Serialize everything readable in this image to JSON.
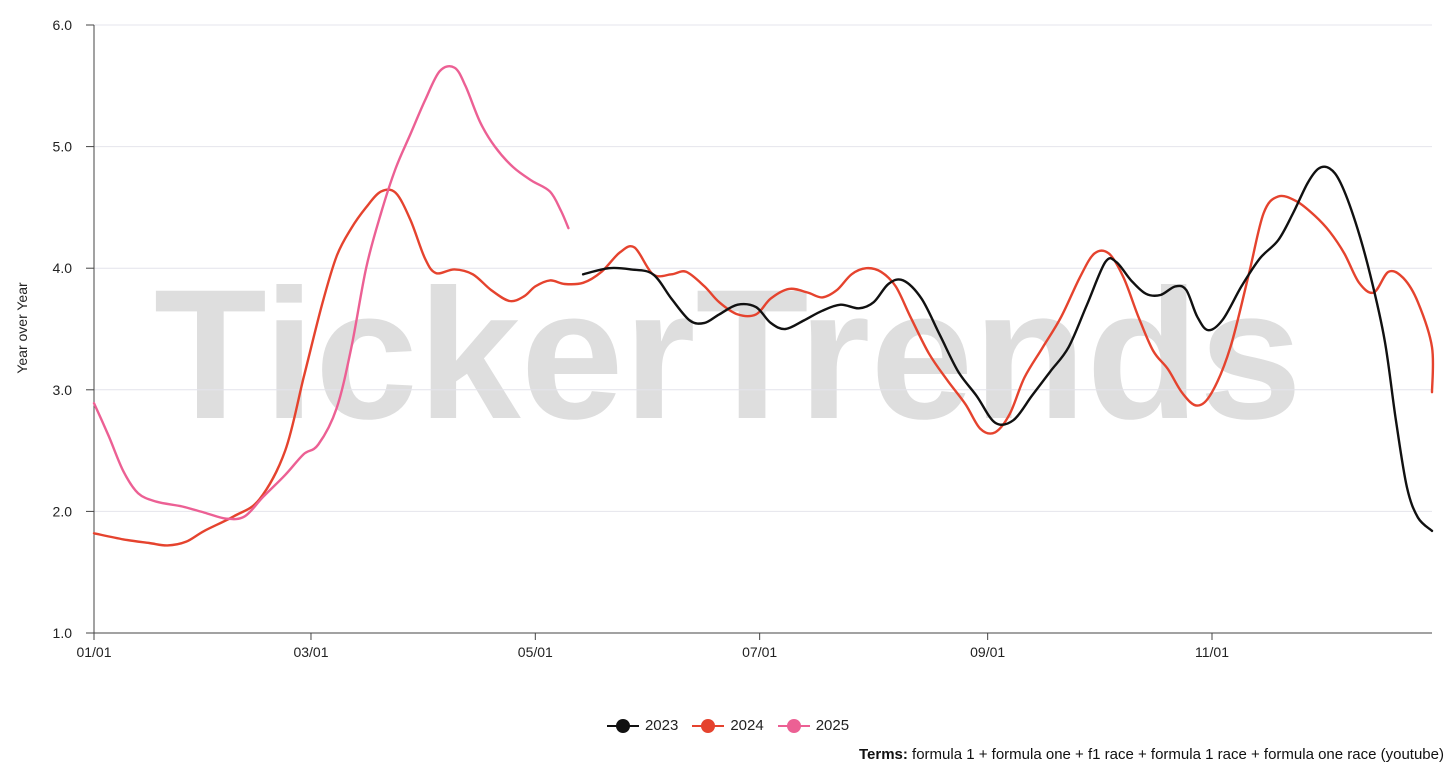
{
  "watermark": "TickerTrends",
  "chart_data": {
    "type": "line",
    "title": "",
    "ylabel": "Year over Year",
    "xlabel": "",
    "ylim": [
      1.0,
      6.0
    ],
    "yticks": [
      "1.0",
      "2.0",
      "3.0",
      "4.0",
      "5.0",
      "6.0"
    ],
    "xticks": [
      {
        "label": "01/01",
        "day": 0
      },
      {
        "label": "03/01",
        "day": 59
      },
      {
        "label": "05/01",
        "day": 120
      },
      {
        "label": "07/01",
        "day": 181
      },
      {
        "label": "09/01",
        "day": 243
      },
      {
        "label": "11/01",
        "day": 304
      }
    ],
    "xlim": [
      0,
      359
    ],
    "grid": true,
    "legend_position": "bottom-center",
    "series": [
      {
        "name": "2023",
        "color": "#111111",
        "points": [
          [
            133,
            3.95
          ],
          [
            140,
            4.0
          ],
          [
            146,
            3.99
          ],
          [
            152,
            3.95
          ],
          [
            157,
            3.75
          ],
          [
            162,
            3.57
          ],
          [
            166,
            3.55
          ],
          [
            170,
            3.62
          ],
          [
            175,
            3.7
          ],
          [
            180,
            3.68
          ],
          [
            184,
            3.55
          ],
          [
            188,
            3.5
          ],
          [
            193,
            3.57
          ],
          [
            198,
            3.65
          ],
          [
            203,
            3.7
          ],
          [
            208,
            3.67
          ],
          [
            212,
            3.72
          ],
          [
            216,
            3.87
          ],
          [
            220,
            3.9
          ],
          [
            225,
            3.75
          ],
          [
            230,
            3.45
          ],
          [
            235,
            3.15
          ],
          [
            240,
            2.95
          ],
          [
            245,
            2.73
          ],
          [
            250,
            2.75
          ],
          [
            255,
            2.95
          ],
          [
            260,
            3.15
          ],
          [
            265,
            3.35
          ],
          [
            270,
            3.7
          ],
          [
            275,
            4.05
          ],
          [
            278,
            4.05
          ],
          [
            282,
            3.9
          ],
          [
            286,
            3.79
          ],
          [
            290,
            3.78
          ],
          [
            294,
            3.85
          ],
          [
            297,
            3.82
          ],
          [
            300,
            3.6
          ],
          [
            303,
            3.49
          ],
          [
            307,
            3.58
          ],
          [
            312,
            3.85
          ],
          [
            317,
            4.08
          ],
          [
            322,
            4.23
          ],
          [
            326,
            4.45
          ],
          [
            330,
            4.7
          ],
          [
            333,
            4.82
          ],
          [
            336,
            4.82
          ],
          [
            339,
            4.7
          ],
          [
            343,
            4.38
          ],
          [
            347,
            3.95
          ],
          [
            351,
            3.4
          ],
          [
            354,
            2.75
          ],
          [
            357,
            2.2
          ],
          [
            360,
            1.95
          ],
          [
            364,
            1.84
          ]
        ]
      },
      {
        "name": "2024",
        "color": "#e5432e",
        "points": [
          [
            0,
            1.82
          ],
          [
            8,
            1.77
          ],
          [
            15,
            1.74
          ],
          [
            20,
            1.72
          ],
          [
            25,
            1.75
          ],
          [
            30,
            1.84
          ],
          [
            38,
            1.96
          ],
          [
            45,
            2.1
          ],
          [
            52,
            2.5
          ],
          [
            57,
            3.1
          ],
          [
            62,
            3.7
          ],
          [
            66,
            4.1
          ],
          [
            70,
            4.33
          ],
          [
            74,
            4.5
          ],
          [
            78,
            4.63
          ],
          [
            82,
            4.62
          ],
          [
            86,
            4.4
          ],
          [
            90,
            4.08
          ],
          [
            93,
            3.96
          ],
          [
            98,
            3.99
          ],
          [
            103,
            3.95
          ],
          [
            108,
            3.82
          ],
          [
            113,
            3.73
          ],
          [
            117,
            3.77
          ],
          [
            120,
            3.85
          ],
          [
            124,
            3.9
          ],
          [
            128,
            3.87
          ],
          [
            133,
            3.88
          ],
          [
            138,
            3.97
          ],
          [
            143,
            4.13
          ],
          [
            147,
            4.17
          ],
          [
            152,
            3.95
          ],
          [
            157,
            3.95
          ],
          [
            161,
            3.97
          ],
          [
            166,
            3.85
          ],
          [
            170,
            3.72
          ],
          [
            175,
            3.62
          ],
          [
            180,
            3.62
          ],
          [
            184,
            3.75
          ],
          [
            189,
            3.83
          ],
          [
            194,
            3.8
          ],
          [
            198,
            3.76
          ],
          [
            202,
            3.82
          ],
          [
            206,
            3.95
          ],
          [
            210,
            4.0
          ],
          [
            214,
            3.97
          ],
          [
            218,
            3.85
          ],
          [
            222,
            3.6
          ],
          [
            227,
            3.3
          ],
          [
            232,
            3.08
          ],
          [
            237,
            2.88
          ],
          [
            241,
            2.68
          ],
          [
            245,
            2.65
          ],
          [
            249,
            2.8
          ],
          [
            253,
            3.1
          ],
          [
            258,
            3.35
          ],
          [
            263,
            3.6
          ],
          [
            268,
            3.92
          ],
          [
            272,
            4.12
          ],
          [
            276,
            4.12
          ],
          [
            280,
            3.92
          ],
          [
            284,
            3.6
          ],
          [
            288,
            3.32
          ],
          [
            292,
            3.17
          ],
          [
            296,
            2.97
          ],
          [
            300,
            2.87
          ],
          [
            304,
            2.98
          ],
          [
            309,
            3.35
          ],
          [
            314,
            3.95
          ],
          [
            318,
            4.45
          ],
          [
            322,
            4.59
          ],
          [
            327,
            4.55
          ],
          [
            332,
            4.43
          ],
          [
            336,
            4.3
          ],
          [
            340,
            4.12
          ],
          [
            344,
            3.88
          ],
          [
            348,
            3.8
          ],
          [
            352,
            3.97
          ],
          [
            356,
            3.92
          ],
          [
            360,
            3.72
          ],
          [
            364,
            3.35
          ],
          [
            368,
            2.98
          ]
        ]
      },
      {
        "name": "2025",
        "color": "#ec6094",
        "points": [
          [
            0,
            2.89
          ],
          [
            4,
            2.62
          ],
          [
            8,
            2.33
          ],
          [
            12,
            2.15
          ],
          [
            17,
            2.08
          ],
          [
            24,
            2.04
          ],
          [
            30,
            1.99
          ],
          [
            36,
            1.94
          ],
          [
            41,
            1.96
          ],
          [
            46,
            2.12
          ],
          [
            52,
            2.3
          ],
          [
            57,
            2.47
          ],
          [
            61,
            2.55
          ],
          [
            66,
            2.85
          ],
          [
            70,
            3.35
          ],
          [
            74,
            4.0
          ],
          [
            78,
            4.45
          ],
          [
            82,
            4.82
          ],
          [
            86,
            5.1
          ],
          [
            90,
            5.38
          ],
          [
            94,
            5.62
          ],
          [
            98,
            5.65
          ],
          [
            101,
            5.5
          ],
          [
            105,
            5.2
          ],
          [
            109,
            5.0
          ],
          [
            114,
            4.83
          ],
          [
            119,
            4.72
          ],
          [
            124,
            4.63
          ],
          [
            127,
            4.47
          ],
          [
            129,
            4.33
          ]
        ]
      }
    ]
  },
  "legend": [
    "2023",
    "2024",
    "2025"
  ],
  "footer": {
    "terms_label": "Terms:",
    "terms_value": "formula 1 + formula one + f1 race + formula 1 race + formula one race (youtube)"
  }
}
